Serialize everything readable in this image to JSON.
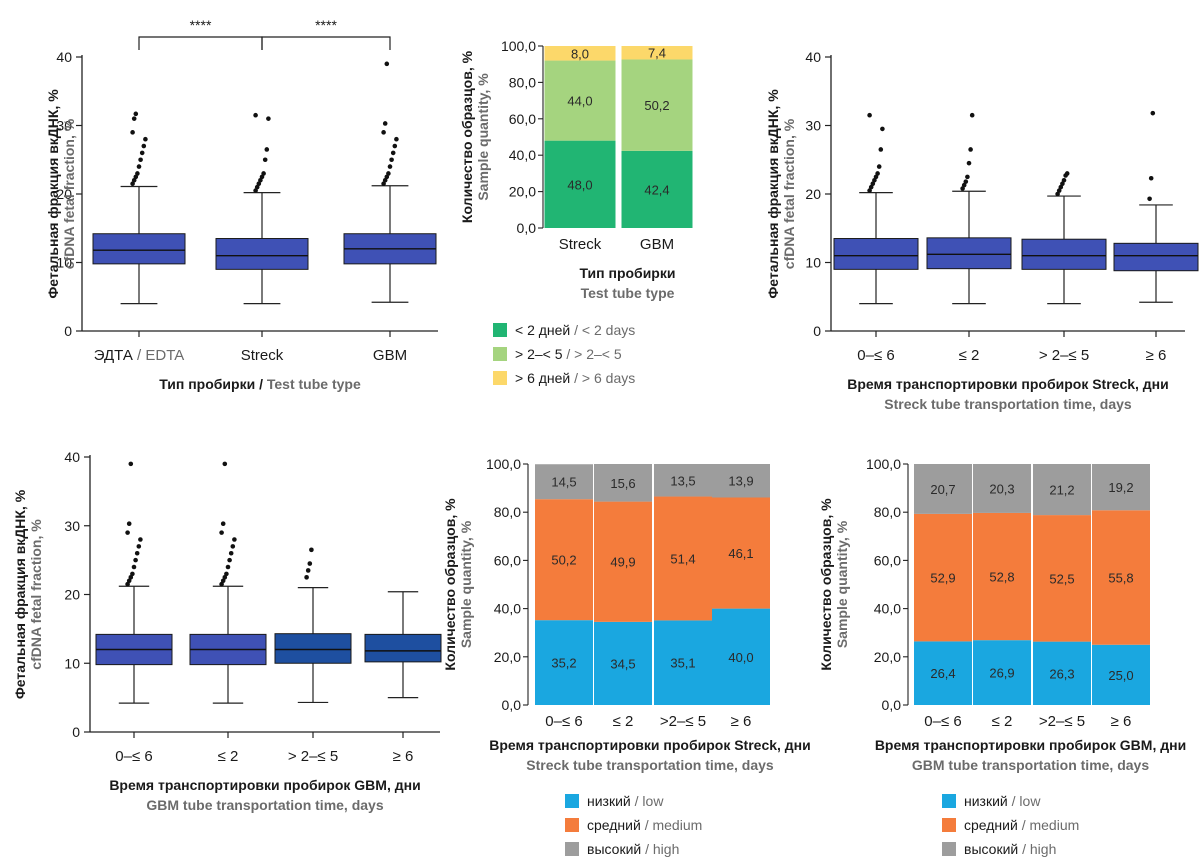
{
  "chart_data": [
    {
      "id": "p1",
      "type": "box",
      "ylabel": "Фетальная фракция вкДНК, %",
      "ylabel_en": "cfDNA fetal fraction, %",
      "yticks": [
        "0",
        "10",
        "20",
        "30",
        "40"
      ],
      "ylim": [
        0,
        40
      ],
      "xlabel_parts": [
        {
          "text": "Тип пробирки",
          "gray": false
        },
        {
          "text": " / ",
          "gray": false
        },
        {
          "text": "Test tube type",
          "gray": true
        }
      ],
      "categories": [
        {
          "parts": [
            {
              "text": "ЭДТА",
              "gray": false
            },
            {
              "text": " / EDTA",
              "gray": true
            }
          ],
          "stats": {
            "whisker_low": 4,
            "q1": 9.8,
            "median": 11.8,
            "q3": 14.2,
            "whisker_high": 21.1
          },
          "outliers": [
            21.5,
            22,
            22.5,
            23,
            24,
            25,
            26,
            27,
            28,
            29,
            31,
            31.7
          ]
        },
        {
          "parts": [
            {
              "text": "Streck",
              "gray": false
            }
          ],
          "stats": {
            "whisker_low": 4,
            "q1": 9,
            "median": 11,
            "q3": 13.5,
            "whisker_high": 20.2
          },
          "outliers": [
            20.5,
            21,
            21.5,
            22,
            22.5,
            23,
            25,
            26.5,
            31,
            31.5
          ]
        },
        {
          "parts": [
            {
              "text": "GBM",
              "gray": false
            }
          ],
          "stats": {
            "whisker_low": 4.2,
            "q1": 9.8,
            "median": 12,
            "q3": 14.2,
            "whisker_high": 21.2
          },
          "outliers": [
            21.5,
            22,
            22.5,
            23,
            24,
            25,
            26,
            27,
            28,
            29,
            30.3,
            39
          ]
        }
      ],
      "box_color": "#3f51b5",
      "significance": [
        {
          "from": 0,
          "to": 1,
          "label": "****"
        },
        {
          "from": 1,
          "to": 2,
          "label": "****"
        }
      ]
    },
    {
      "id": "p2",
      "type": "stacked_bar",
      "ylabel": "Количество образцов, %",
      "ylabel_en": "Sample quantity, %",
      "yticks": [
        "0,0",
        "20,0",
        "40,0",
        "60,0",
        "80,0",
        "100,0"
      ],
      "ylim": [
        0,
        100
      ],
      "categories": [
        "Streck",
        "GBM"
      ],
      "series": [
        {
          "values": [
            48.0,
            42.4
          ],
          "labels": [
            "48,0",
            "42,4"
          ],
          "color": "#21b573"
        },
        {
          "values": [
            44.0,
            50.2
          ],
          "labels": [
            "44,0",
            "50,2"
          ],
          "color": "#a5d47f"
        },
        {
          "values": [
            8.0,
            7.4
          ],
          "labels": [
            "8,0",
            "7,4"
          ],
          "color": "#fcd86a"
        }
      ],
      "xlabel": "Тип пробирки",
      "xlabel_en": "Test tube type",
      "legend": [
        {
          "parts": [
            {
              "text": "< 2 дней",
              "gray": false
            },
            {
              "text": " / < 2 days",
              "gray": true
            }
          ],
          "color": "#21b573"
        },
        {
          "parts": [
            {
              "text": "> 2–< 5",
              "gray": false
            },
            {
              "text": " / > 2–< 5",
              "gray": true
            }
          ],
          "color": "#a5d47f"
        },
        {
          "parts": [
            {
              "text": "> 6 дней",
              "gray": false
            },
            {
              "text": " / > 6 days",
              "gray": true
            }
          ],
          "color": "#fcd86a"
        }
      ],
      "legend_placement": "bottom"
    },
    {
      "id": "p3",
      "type": "box",
      "ylabel": "Фетальная фракция вкДНК, %",
      "ylabel_en": "cfDNA fetal fraction, %",
      "yticks": [
        "0",
        "10",
        "20",
        "30",
        "40"
      ],
      "ylim": [
        0,
        40
      ],
      "xlabel": "Время транспортировки пробирок Streck, дни",
      "xlabel_en": "Streck tube transportation time, days",
      "categories": [
        {
          "label": "0–≤ 6",
          "stats": {
            "whisker_low": 4,
            "q1": 9,
            "median": 11,
            "q3": 13.5,
            "whisker_high": 20.2
          },
          "outliers": [
            20.5,
            21,
            21.5,
            22,
            22.5,
            23,
            24,
            26.5,
            29.5,
            31.5
          ]
        },
        {
          "label": "≤ 2",
          "stats": {
            "whisker_low": 4,
            "q1": 9.1,
            "median": 11.2,
            "q3": 13.6,
            "whisker_high": 20.4
          },
          "outliers": [
            20.8,
            21.3,
            21.8,
            22.5,
            24.5,
            26.5,
            31.5
          ]
        },
        {
          "label": "> 2–≤ 5",
          "stats": {
            "whisker_low": 4,
            "q1": 9,
            "median": 11,
            "q3": 13.4,
            "whisker_high": 19.7
          },
          "outliers": [
            20,
            20.5,
            21,
            21.5,
            22,
            22.7,
            23
          ]
        },
        {
          "label": "≥ 6",
          "stats": {
            "whisker_low": 4.2,
            "q1": 8.8,
            "median": 11,
            "q3": 12.8,
            "whisker_high": 18.4
          },
          "outliers": [
            19.3,
            22.3,
            31.8
          ]
        }
      ],
      "box_color": "#3f51b5"
    },
    {
      "id": "p4",
      "type": "box",
      "ylabel": "Фетальная фракция вкДНК, %",
      "ylabel_en": "cfDNA fetal fraction, %",
      "yticks": [
        "0",
        "10",
        "20",
        "30",
        "40"
      ],
      "ylim": [
        0,
        40
      ],
      "xlabel": "Время транспортировки пробирок GBM, дни",
      "xlabel_en": "GBM tube transportation time, days",
      "categories": [
        {
          "label": "0–≤ 6",
          "stats": {
            "whisker_low": 4.2,
            "q1": 9.8,
            "median": 12,
            "q3": 14.2,
            "whisker_high": 21.2
          },
          "outliers": [
            21.5,
            22,
            22.5,
            23,
            24,
            25,
            26,
            27,
            28,
            29,
            30.3,
            39
          ]
        },
        {
          "label": "≤ 2",
          "stats": {
            "whisker_low": 4.2,
            "q1": 9.8,
            "median": 12,
            "q3": 14.2,
            "whisker_high": 21.2
          },
          "outliers": [
            21.5,
            22,
            22.5,
            23,
            24,
            25,
            26,
            27,
            28,
            29,
            30.3,
            39
          ]
        },
        {
          "label": "> 2–≤ 5",
          "stats": {
            "whisker_low": 4.3,
            "q1": 10,
            "median": 12,
            "q3": 14.3,
            "whisker_high": 21
          },
          "outliers": [
            22.5,
            23.5,
            24.5,
            26.5
          ]
        },
        {
          "label": "≥ 6",
          "stats": {
            "whisker_low": 5,
            "q1": 10.2,
            "median": 11.8,
            "q3": 14.2,
            "whisker_high": 20.4
          },
          "outliers": []
        }
      ],
      "box_colors": [
        "#3f51b5",
        "#3f51b5",
        "#1e4fa0",
        "#1e4fa0"
      ]
    },
    {
      "id": "p5",
      "type": "stacked_bar",
      "ylabel": "Количество образцов, %",
      "ylabel_en": "Sample quantity, %",
      "yticks": [
        "0,0",
        "20,0",
        "40,0",
        "60,0",
        "80,0",
        "100,0"
      ],
      "ylim": [
        0,
        100
      ],
      "categories": [
        "0–≤ 6",
        "≤ 2",
        ">2–≤ 5",
        "≥ 6"
      ],
      "series": [
        {
          "values": [
            35.2,
            34.5,
            35.1,
            40.0
          ],
          "labels": [
            "35,2",
            "34,5",
            "35,1",
            "40,0"
          ],
          "color": "#1aa7e0"
        },
        {
          "values": [
            50.2,
            49.9,
            51.4,
            46.1
          ],
          "labels": [
            "50,2",
            "49,9",
            "51,4",
            "46,1"
          ],
          "color": "#f47c3c"
        },
        {
          "values": [
            14.5,
            15.6,
            13.5,
            13.9
          ],
          "labels": [
            "14,5",
            "15,6",
            "13,5",
            "13,9"
          ],
          "color": "#9d9d9d"
        }
      ],
      "xlabel": "Время транспортировки пробирок Streck, дни",
      "xlabel_en": "Streck tube transportation time, days",
      "legend": [
        {
          "parts": [
            {
              "text": "низкий",
              "gray": false
            },
            {
              "text": " / low",
              "gray": true
            }
          ],
          "color": "#1aa7e0"
        },
        {
          "parts": [
            {
              "text": "средний",
              "gray": false
            },
            {
              "text": " / medium",
              "gray": true
            }
          ],
          "color": "#f47c3c"
        },
        {
          "parts": [
            {
              "text": "высокий",
              "gray": false
            },
            {
              "text": " / high",
              "gray": true
            }
          ],
          "color": "#9d9d9d"
        }
      ],
      "legend_placement": "bottom"
    },
    {
      "id": "p6",
      "type": "stacked_bar",
      "ylabel": "Количество образцов, %",
      "ylabel_en": "Sample quantity, %",
      "yticks": [
        "0,0",
        "20,0",
        "40,0",
        "60,0",
        "80,0",
        "100,0"
      ],
      "ylim": [
        0,
        100
      ],
      "categories": [
        "0–≤ 6",
        "≤ 2",
        ">2–≤ 5",
        "≥ 6"
      ],
      "series": [
        {
          "values": [
            26.4,
            26.9,
            26.3,
            25.0
          ],
          "labels": [
            "26,4",
            "26,9",
            "26,3",
            "25,0"
          ],
          "color": "#1aa7e0"
        },
        {
          "values": [
            52.9,
            52.8,
            52.5,
            55.8
          ],
          "labels": [
            "52,9",
            "52,8",
            "52,5",
            "55,8"
          ],
          "color": "#f47c3c"
        },
        {
          "values": [
            20.7,
            20.3,
            21.2,
            19.2
          ],
          "labels": [
            "20,7",
            "20,3",
            "21,2",
            "19,2"
          ],
          "color": "#9d9d9d"
        }
      ],
      "xlabel": "Время транспортировки пробирок GBM, дни",
      "xlabel_en": "GBM tube transportation time, days",
      "legend": [
        {
          "parts": [
            {
              "text": "низкий",
              "gray": false
            },
            {
              "text": " / low",
              "gray": true
            }
          ],
          "color": "#1aa7e0"
        },
        {
          "parts": [
            {
              "text": "средний",
              "gray": false
            },
            {
              "text": " / medium",
              "gray": true
            }
          ],
          "color": "#f47c3c"
        },
        {
          "parts": [
            {
              "text": "высокий",
              "gray": false
            },
            {
              "text": " / high",
              "gray": true
            }
          ],
          "color": "#9d9d9d"
        }
      ],
      "legend_placement": "bottom"
    }
  ]
}
